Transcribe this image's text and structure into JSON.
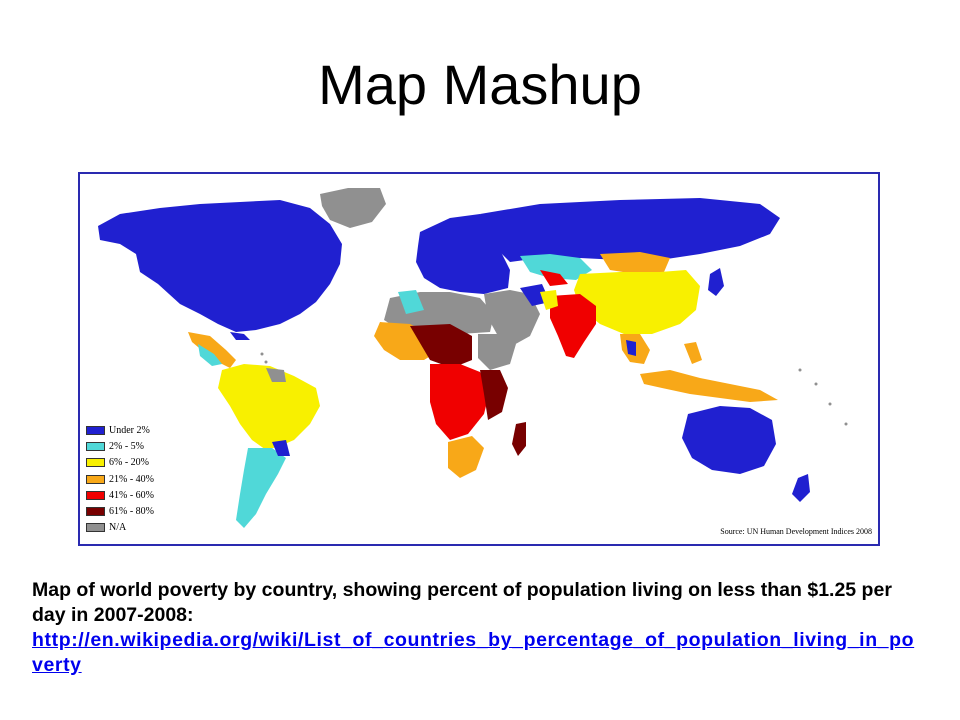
{
  "slide": {
    "title": "Map Mashup"
  },
  "map": {
    "source": "Source: UN Human Development Indices 2008",
    "legend": [
      {
        "label": "Under 2%",
        "color": "#2020d0"
      },
      {
        "label": "2% - 5%",
        "color": "#50d8d8"
      },
      {
        "label": "6% - 20%",
        "color": "#f8f000"
      },
      {
        "label": "21% - 40%",
        "color": "#f8a818"
      },
      {
        "label": "41% - 60%",
        "color": "#f00000"
      },
      {
        "label": "61% - 80%",
        "color": "#780000"
      },
      {
        "label": "N/A",
        "color": "#909090"
      }
    ],
    "border_color": "#2a2ab0"
  },
  "caption": {
    "text": "Map of world poverty by country, showing percent of population living on less than $1.25 per day in 2007-2008:",
    "link": "http://en.wikipedia.org/wiki/List_of_countries_by_percentage_of_population_living_in_poverty"
  }
}
